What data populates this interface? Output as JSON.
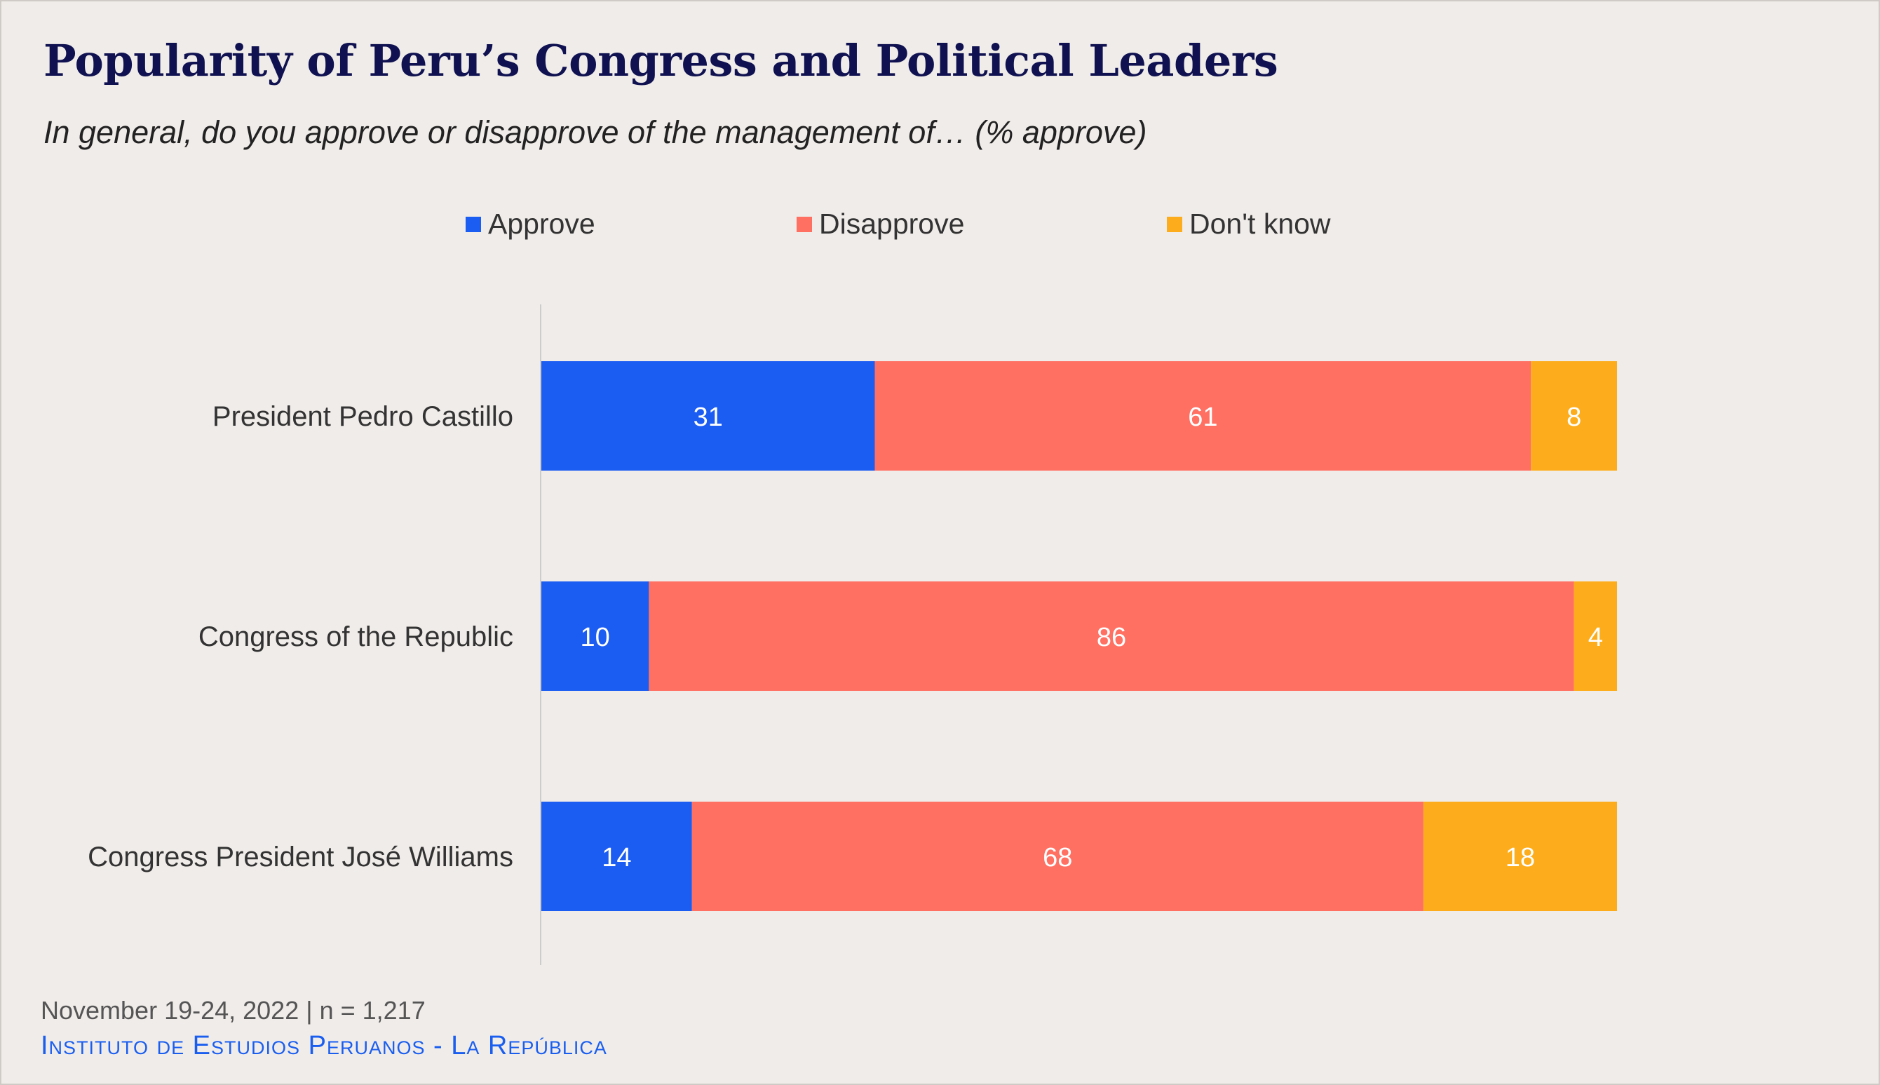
{
  "title": "Popularity of Peru’s Congress and Political Leaders",
  "subtitle": "In general, do you approve or disapprove of the management of… (% approve)",
  "footer": {
    "date_sample": "November 19-24, 2022 | n = 1,217",
    "source": "Instituto de Estudios Peruanos - La República"
  },
  "colors": {
    "approve": "#1b5cf2",
    "disapprove": "#ff7063",
    "dont_know": "#fdad1b",
    "title": "#0f1150",
    "source": "#1a5ef0",
    "background": "#f0ece9"
  },
  "chart_data": {
    "type": "bar",
    "orientation": "horizontal",
    "stacked": true,
    "xlim": [
      0,
      100
    ],
    "legend_position": "top-center",
    "categories": [
      "President Pedro Castillo",
      "Congress of the Republic",
      "Congress President José Williams"
    ],
    "series": [
      {
        "name": "Approve",
        "color": "#1b5cf2",
        "values": [
          31,
          10,
          14
        ]
      },
      {
        "name": "Disapprove",
        "color": "#ff7063",
        "values": [
          61,
          86,
          68
        ]
      },
      {
        "name": "Don't know",
        "color": "#fdad1b",
        "values": [
          8,
          4,
          18
        ]
      }
    ]
  }
}
